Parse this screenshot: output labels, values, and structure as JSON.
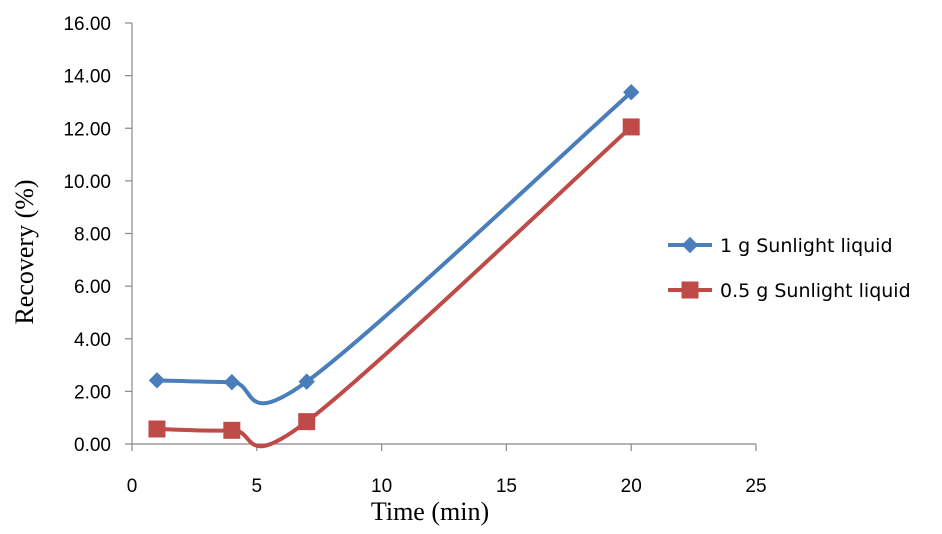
{
  "chart_data": {
    "type": "line",
    "xlabel": "Time (min)",
    "ylabel": "Recovery (%)",
    "xlim": [
      0,
      25
    ],
    "ylim": [
      0,
      16
    ],
    "x_ticks": [
      "0",
      "5",
      "10",
      "15",
      "20",
      "25"
    ],
    "y_ticks": [
      "0.00",
      "2.00",
      "4.00",
      "6.00",
      "8.00",
      "10.00",
      "12.00",
      "14.00",
      "16.00"
    ],
    "grid": false,
    "legend_position": "right",
    "smooth": true,
    "series": [
      {
        "name": "1 g Sunlight liquid",
        "color": "#4a7ebb",
        "marker": "diamond",
        "x": [
          1,
          4,
          7,
          20
        ],
        "y": [
          2.42,
          2.35,
          2.37,
          13.37
        ]
      },
      {
        "name": "0.5 g Sunlight liquid",
        "color": "#be4b48",
        "marker": "square",
        "x": [
          1,
          4,
          7,
          20
        ],
        "y": [
          0.57,
          0.52,
          0.85,
          12.05
        ]
      }
    ]
  }
}
